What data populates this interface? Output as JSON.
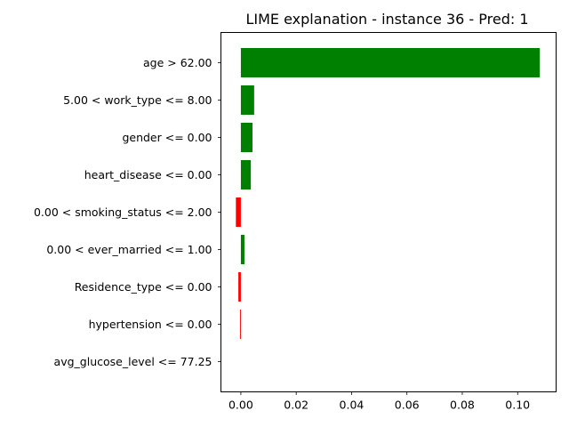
{
  "chart_data": {
    "type": "bar",
    "orientation": "horizontal",
    "title": "LIME explanation - instance 36 - Pred: 1",
    "xlabel": "",
    "ylabel": "",
    "categories": [
      "age > 62.00",
      "5.00 < work_type <= 8.00",
      "gender <= 0.00",
      "heart_disease <= 0.00",
      "0.00 < smoking_status <= 2.00",
      "0.00 < ever_married <= 1.00",
      "Residence_type <= 0.00",
      "hypertension <= 0.00",
      "avg_glucose_level <= 77.25"
    ],
    "values": [
      0.108,
      0.0048,
      0.0042,
      0.0036,
      -0.0018,
      0.0013,
      -0.0009,
      -0.0003,
      0.0
    ],
    "xlim": [
      -0.0072,
      0.1139
    ],
    "xticks": [
      0.0,
      0.02,
      0.04,
      0.06,
      0.08,
      0.1
    ],
    "xtick_labels": [
      "0.00",
      "0.02",
      "0.04",
      "0.06",
      "0.08",
      "0.10"
    ],
    "colors": {
      "positive": "#008000",
      "negative": "#ff0000"
    },
    "grid": false,
    "legend": "none"
  }
}
